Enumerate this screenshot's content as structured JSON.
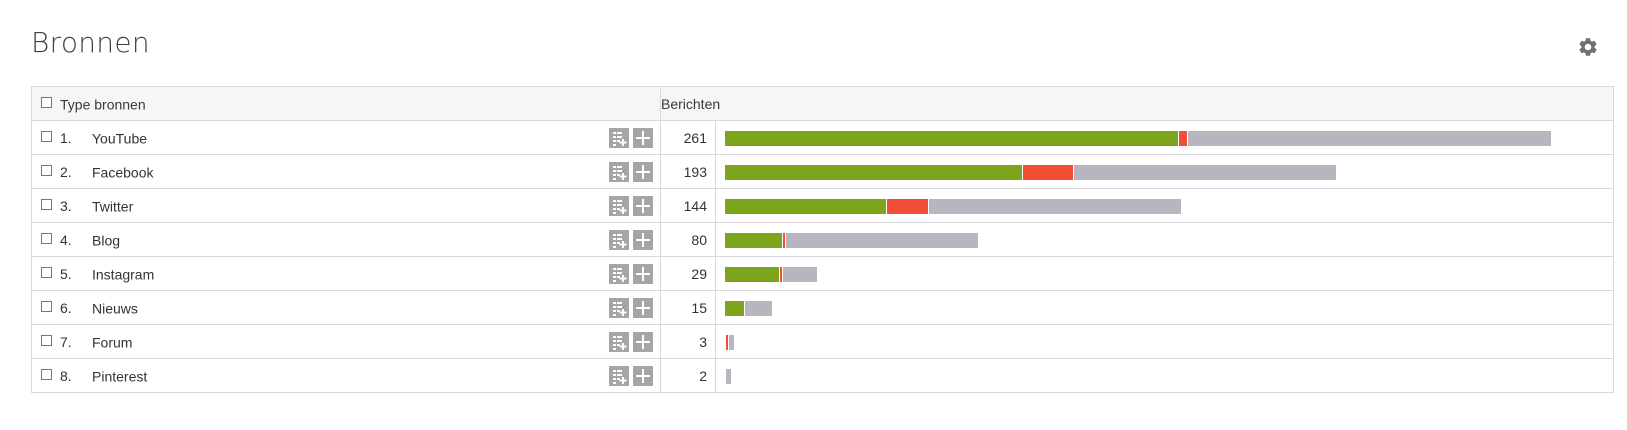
{
  "page": {
    "title": "Bronnen",
    "settings_icon": "gear-icon"
  },
  "table": {
    "headers": {
      "type": "Type bronnen",
      "messages": "Berichten"
    },
    "row_action_icons": [
      "add-to-list-icon",
      "plus-icon"
    ],
    "colors": {
      "positive": "#7da51b",
      "negative": "#f34d35",
      "neutral": "#b7b5bd"
    },
    "max_messages": 261,
    "rows": [
      {
        "rank": "1.",
        "name": "YouTube",
        "count": "261",
        "total": 261,
        "positive": 143,
        "negative": 3,
        "neutral": 115
      },
      {
        "rank": "2.",
        "name": "Facebook",
        "count": "193",
        "total": 193,
        "positive": 94,
        "negative": 16,
        "neutral": 83
      },
      {
        "rank": "3.",
        "name": "Twitter",
        "count": "144",
        "total": 144,
        "positive": 51,
        "negative": 13,
        "neutral": 80
      },
      {
        "rank": "4.",
        "name": "Blog",
        "count": "80",
        "total": 80,
        "positive": 18,
        "negative": 1,
        "neutral": 61
      },
      {
        "rank": "5.",
        "name": "Instagram",
        "count": "29",
        "total": 29,
        "positive": 17,
        "negative": 1,
        "neutral": 11
      },
      {
        "rank": "6.",
        "name": "Nieuws",
        "count": "15",
        "total": 15,
        "positive": 6,
        "negative": 0,
        "neutral": 9
      },
      {
        "rank": "7.",
        "name": "Forum",
        "count": "3",
        "total": 3,
        "positive": 0,
        "negative": 1,
        "neutral": 2
      },
      {
        "rank": "8.",
        "name": "Pinterest",
        "count": "2",
        "total": 2,
        "positive": 0,
        "negative": 0,
        "neutral": 2
      }
    ]
  }
}
